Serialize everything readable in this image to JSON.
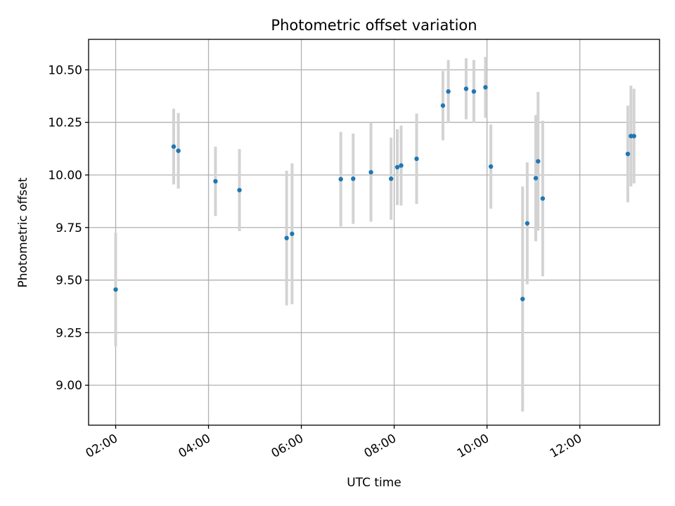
{
  "chart_data": {
    "type": "scatter",
    "title": "Photometric offset variation",
    "xlabel": "UTC time",
    "ylabel": "Photometric offset",
    "x_tick_labels": [
      "02:00",
      "04:00",
      "06:00",
      "08:00",
      "10:00",
      "12:00"
    ],
    "x_tick_hours": [
      2,
      4,
      6,
      8,
      10,
      12
    ],
    "y_ticks": [
      9.0,
      9.25,
      9.5,
      9.75,
      10.0,
      10.25,
      10.5
    ],
    "y_tick_labels": [
      "9.00",
      "9.25",
      "9.50",
      "9.75",
      "10.00",
      "10.25",
      "10.50"
    ],
    "xlim": [
      "01:25",
      "13:43"
    ],
    "ylim": [
      8.81,
      10.645
    ],
    "grid": true,
    "marker_color": "#1f77b4",
    "errorbar_color": "#d3d3d3",
    "points": [
      {
        "x": "02:00",
        "y": 9.455,
        "err": 0.27
      },
      {
        "x": "03:15",
        "y": 10.135,
        "err": 0.18
      },
      {
        "x": "03:21",
        "y": 10.115,
        "err": 0.18
      },
      {
        "x": "04:09",
        "y": 9.97,
        "err": 0.165
      },
      {
        "x": "04:40",
        "y": 9.928,
        "err": 0.195
      },
      {
        "x": "05:41",
        "y": 9.7,
        "err": 0.32
      },
      {
        "x": "05:48",
        "y": 9.72,
        "err": 0.335
      },
      {
        "x": "06:51",
        "y": 9.98,
        "err": 0.225
      },
      {
        "x": "07:07",
        "y": 9.982,
        "err": 0.215
      },
      {
        "x": "07:30",
        "y": 10.013,
        "err": 0.235
      },
      {
        "x": "07:56",
        "y": 9.982,
        "err": 0.195
      },
      {
        "x": "08:04",
        "y": 10.037,
        "err": 0.18
      },
      {
        "x": "08:09",
        "y": 10.045,
        "err": 0.19
      },
      {
        "x": "08:29",
        "y": 10.077,
        "err": 0.215
      },
      {
        "x": "09:03",
        "y": 10.33,
        "err": 0.165
      },
      {
        "x": "09:10",
        "y": 10.397,
        "err": 0.15
      },
      {
        "x": "09:33",
        "y": 10.41,
        "err": 0.145
      },
      {
        "x": "09:43",
        "y": 10.397,
        "err": 0.15
      },
      {
        "x": "09:58",
        "y": 10.417,
        "err": 0.145
      },
      {
        "x": "10:05",
        "y": 10.04,
        "err": 0.2
      },
      {
        "x": "10:46",
        "y": 9.41,
        "err": 0.535
      },
      {
        "x": "10:52",
        "y": 9.77,
        "err": 0.29
      },
      {
        "x": "11:03",
        "y": 9.985,
        "err": 0.3
      },
      {
        "x": "11:06",
        "y": 10.065,
        "err": 0.33
      },
      {
        "x": "11:12",
        "y": 9.888,
        "err": 0.37
      },
      {
        "x": "13:02",
        "y": 10.1,
        "err": 0.23
      },
      {
        "x": "13:06",
        "y": 10.185,
        "err": 0.24
      },
      {
        "x": "13:10",
        "y": 10.185,
        "err": 0.225
      }
    ]
  }
}
